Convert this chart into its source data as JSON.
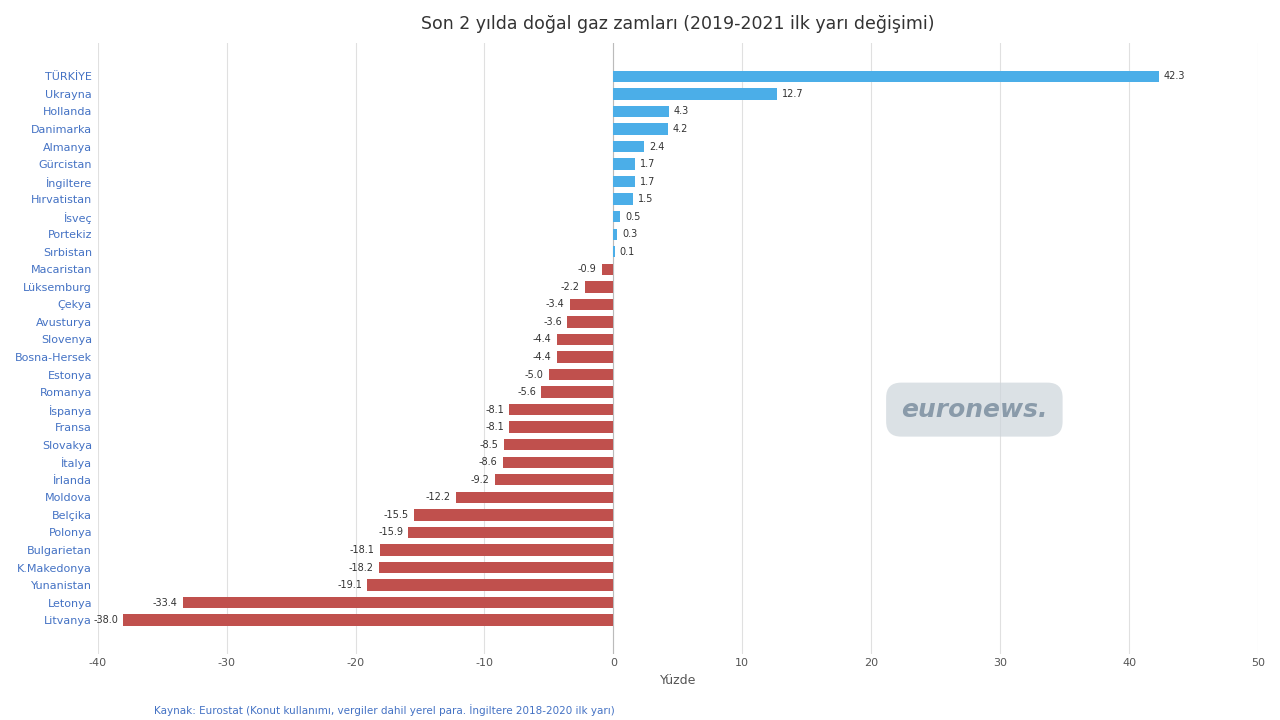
{
  "title": "Son 2 yılda doğal gaz zamları (2019-2021 ilk yarı değişimi)",
  "xlabel": "Yüzde",
  "footer": "Kaynak: Eurostat (Konut kullanımı, vergiler dahil yerel para. İngiltere 2018-2020 ilk yarı)",
  "categories": [
    "TÜRKİYE",
    "Ukrayna",
    "Hollanda",
    "Danimarka",
    "Almanya",
    "Gürcistan",
    "İngiltere",
    "Hırvatistan",
    "İsveç",
    "Portekiz",
    "Sırbistan",
    "Macaristan",
    "Lüksemburg",
    "Çekya",
    "Avusturya",
    "Slovenya",
    "Bosna-Hersek",
    "Estonya",
    "Romanya",
    "İspanya",
    "Fransa",
    "Slovakya",
    "İtalya",
    "İrlanda",
    "Moldova",
    "Belçika",
    "Polonya",
    "Bulgarietan",
    "K.Makedonya",
    "Yunanistan",
    "Letonya",
    "Litvanya"
  ],
  "values": [
    42.3,
    12.7,
    4.3,
    4.2,
    2.4,
    1.7,
    1.7,
    1.5,
    0.5,
    0.3,
    0.1,
    -0.9,
    -2.2,
    -3.4,
    -3.6,
    -4.4,
    -4.4,
    -5.0,
    -5.6,
    -8.1,
    -8.1,
    -8.5,
    -8.6,
    -9.2,
    -12.2,
    -15.5,
    -15.9,
    -18.1,
    -18.2,
    -19.1,
    -33.4,
    -38.0
  ],
  "positive_color": "#4BAEE8",
  "negative_color": "#C0504D",
  "background_color": "#FFFFFF",
  "title_color": "#333333",
  "label_color": "#4472C4",
  "tick_color": "#555555",
  "grid_color": "#E0E0E0",
  "xlim": [
    -40,
    50
  ],
  "xticks": [
    -40,
    -30,
    -20,
    -10,
    0,
    10,
    20,
    30,
    40,
    50
  ],
  "title_fontsize": 12.5,
  "label_fontsize": 8,
  "value_fontsize": 7,
  "footer_fontsize": 7.5,
  "xlabel_fontsize": 9,
  "bar_height": 0.65
}
